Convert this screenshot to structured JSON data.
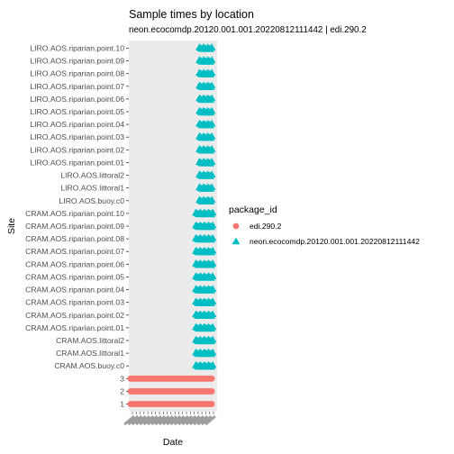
{
  "chart_data": {
    "type": "scatter",
    "title": "Sample times by location",
    "subtitle": "neon.ecocomdp.20120.001.001.20220812111442 | edi.290.2",
    "xlabel": "Date",
    "ylabel": "Site",
    "x_tick_labels": [],
    "grid": false,
    "legend": {
      "title": "package_id",
      "placement": "right",
      "entries": [
        {
          "label": "edi.290.2",
          "color": "#F8766D",
          "shape": "circle"
        },
        {
          "label": "neon.ecocomdp.20120.001.001.20220812111442",
          "color": "#00BFC4",
          "shape": "triangle"
        }
      ]
    },
    "categories": [
      "1",
      "2",
      "3",
      "CRAM.AOS.buoy.c0",
      "CRAM.AOS.littoral1",
      "CRAM.AOS.littoral2",
      "CRAM.AOS.riparian.point.01",
      "CRAM.AOS.riparian.point.02",
      "CRAM.AOS.riparian.point.03",
      "CRAM.AOS.riparian.point.04",
      "CRAM.AOS.riparian.point.05",
      "CRAM.AOS.riparian.point.06",
      "CRAM.AOS.riparian.point.07",
      "CRAM.AOS.riparian.point.08",
      "CRAM.AOS.riparian.point.09",
      "CRAM.AOS.riparian.point.10",
      "LIRO.AOS.buoy.c0",
      "LIRO.AOS.littoral1",
      "LIRO.AOS.littoral2",
      "LIRO.AOS.riparian.point.01",
      "LIRO.AOS.riparian.point.02",
      "LIRO.AOS.riparian.point.03",
      "LIRO.AOS.riparian.point.04",
      "LIRO.AOS.riparian.point.05",
      "LIRO.AOS.riparian.point.06",
      "LIRO.AOS.riparian.point.07",
      "LIRO.AOS.riparian.point.08",
      "LIRO.AOS.riparian.point.09",
      "LIRO.AOS.riparian.point.10"
    ],
    "xlim": [
      0,
      1
    ],
    "series": [
      {
        "name": "edi.290.2",
        "color": "#F8766D",
        "shape": "circle",
        "points": [
          {
            "site": "1",
            "x_range": [
              0.02,
              0.94
            ]
          },
          {
            "site": "2",
            "x_range": [
              0.02,
              0.94
            ]
          },
          {
            "site": "3",
            "x_range": [
              0.02,
              0.94
            ]
          }
        ]
      },
      {
        "name": "neon.ecocomdp.20120.001.001.20220812111442",
        "color": "#00BFC4",
        "shape": "triangle",
        "points": [
          {
            "site": "CRAM.AOS.buoy.c0",
            "x_range": [
              0.76,
              0.95
            ]
          },
          {
            "site": "CRAM.AOS.littoral1",
            "x_range": [
              0.76,
              0.95
            ]
          },
          {
            "site": "CRAM.AOS.littoral2",
            "x_range": [
              0.76,
              0.95
            ]
          },
          {
            "site": "CRAM.AOS.riparian.point.01",
            "x_range": [
              0.76,
              0.95
            ]
          },
          {
            "site": "CRAM.AOS.riparian.point.02",
            "x_range": [
              0.76,
              0.95
            ]
          },
          {
            "site": "CRAM.AOS.riparian.point.03",
            "x_range": [
              0.76,
              0.95
            ]
          },
          {
            "site": "CRAM.AOS.riparian.point.04",
            "x_range": [
              0.76,
              0.95
            ]
          },
          {
            "site": "CRAM.AOS.riparian.point.05",
            "x_range": [
              0.76,
              0.95
            ]
          },
          {
            "site": "CRAM.AOS.riparian.point.06",
            "x_range": [
              0.76,
              0.95
            ]
          },
          {
            "site": "CRAM.AOS.riparian.point.07",
            "x_range": [
              0.76,
              0.95
            ]
          },
          {
            "site": "CRAM.AOS.riparian.point.08",
            "x_range": [
              0.76,
              0.95
            ]
          },
          {
            "site": "CRAM.AOS.riparian.point.09",
            "x_range": [
              0.76,
              0.95
            ]
          },
          {
            "site": "CRAM.AOS.riparian.point.10",
            "x_range": [
              0.76,
              0.95
            ]
          },
          {
            "site": "LIRO.AOS.buoy.c0",
            "x_range": [
              0.8,
              0.94
            ]
          },
          {
            "site": "LIRO.AOS.littoral1",
            "x_range": [
              0.8,
              0.94
            ]
          },
          {
            "site": "LIRO.AOS.littoral2",
            "x_range": [
              0.8,
              0.94
            ]
          },
          {
            "site": "LIRO.AOS.riparian.point.01",
            "x_range": [
              0.8,
              0.94
            ]
          },
          {
            "site": "LIRO.AOS.riparian.point.02",
            "x_range": [
              0.8,
              0.94
            ]
          },
          {
            "site": "LIRO.AOS.riparian.point.03",
            "x_range": [
              0.8,
              0.94
            ]
          },
          {
            "site": "LIRO.AOS.riparian.point.04",
            "x_range": [
              0.8,
              0.94
            ]
          },
          {
            "site": "LIRO.AOS.riparian.point.05",
            "x_range": [
              0.8,
              0.94
            ]
          },
          {
            "site": "LIRO.AOS.riparian.point.06",
            "x_range": [
              0.8,
              0.94
            ]
          },
          {
            "site": "LIRO.AOS.riparian.point.07",
            "x_range": [
              0.8,
              0.94
            ]
          },
          {
            "site": "LIRO.AOS.riparian.point.08",
            "x_range": [
              0.8,
              0.94
            ]
          },
          {
            "site": "LIRO.AOS.riparian.point.09",
            "x_range": [
              0.8,
              0.94
            ]
          },
          {
            "site": "LIRO.AOS.riparian.point.10",
            "x_range": [
              0.8,
              0.94
            ]
          }
        ]
      }
    ],
    "panel_background": "#EBEBEB"
  }
}
